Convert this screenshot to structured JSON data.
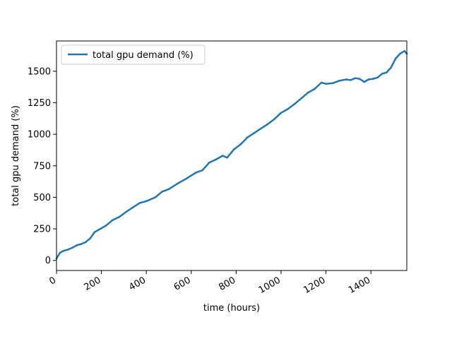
{
  "chart_data": {
    "type": "line",
    "title": "",
    "xlabel": "time (hours)",
    "ylabel": "total gpu demand (%)",
    "xlim": [
      0,
      1560
    ],
    "ylim": [
      -80,
      1740
    ],
    "xticks": [
      0,
      200,
      400,
      600,
      800,
      1000,
      1200,
      1400
    ],
    "xtick_labels": [
      "0",
      "200",
      "400",
      "600",
      "800",
      "1000",
      "1200",
      "1400"
    ],
    "yticks": [
      0,
      250,
      500,
      750,
      1000,
      1250,
      1500
    ],
    "ytick_labels": [
      "0",
      "250",
      "500",
      "750",
      "1000",
      "1250",
      "1500"
    ],
    "grid": false,
    "legend_position": "upper-left",
    "series": [
      {
        "name": "total gpu demand (%)",
        "color": "#1f77b4",
        "x": [
          0,
          15,
          30,
          50,
          70,
          90,
          110,
          130,
          150,
          170,
          190,
          220,
          250,
          280,
          310,
          340,
          370,
          400,
          440,
          470,
          500,
          540,
          580,
          620,
          650,
          680,
          710,
          740,
          760,
          790,
          820,
          850,
          880,
          910,
          940,
          970,
          1000,
          1030,
          1060,
          1090,
          1120,
          1150,
          1180,
          1200,
          1230,
          1260,
          1290,
          1310,
          1330,
          1350,
          1370,
          1390,
          1410,
          1430,
          1450,
          1470,
          1490,
          1510,
          1530,
          1550,
          1560
        ],
        "y": [
          15,
          60,
          75,
          85,
          100,
          120,
          130,
          145,
          175,
          225,
          245,
          275,
          320,
          345,
          385,
          420,
          455,
          470,
          500,
          545,
          565,
          610,
          650,
          695,
          715,
          775,
          800,
          830,
          815,
          880,
          920,
          975,
          1010,
          1045,
          1080,
          1120,
          1170,
          1200,
          1240,
          1285,
          1330,
          1360,
          1410,
          1400,
          1405,
          1425,
          1435,
          1430,
          1445,
          1440,
          1415,
          1435,
          1440,
          1450,
          1480,
          1490,
          1530,
          1600,
          1640,
          1660,
          1640
        ]
      }
    ]
  }
}
